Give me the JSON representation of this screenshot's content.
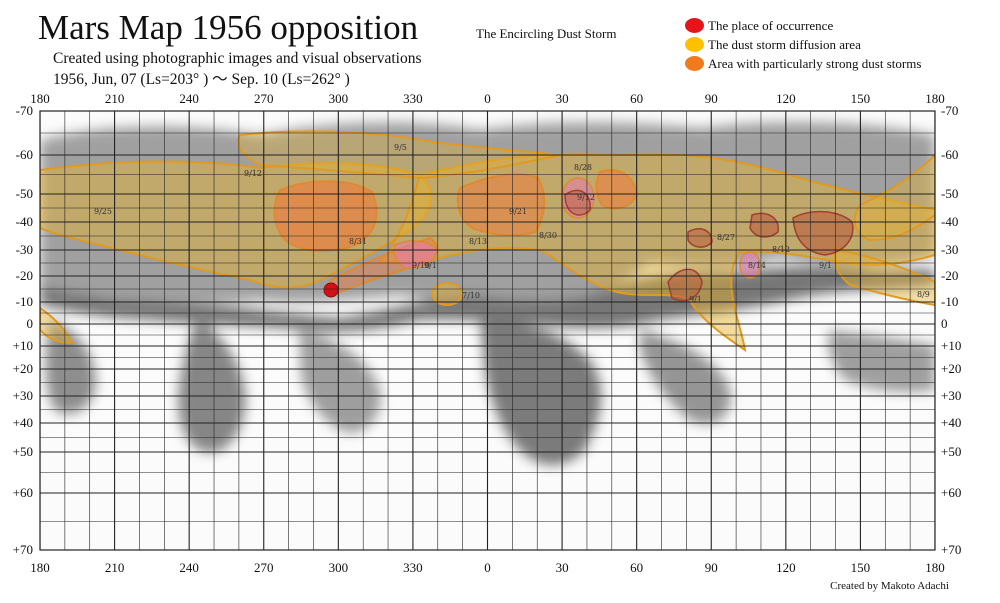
{
  "header": {
    "title": "Mars Map 1956 opposition",
    "subtitle": "The Encircling Dust Storm",
    "line1": "Created using photographic images and visual observations",
    "line2": "1956, Jun, 07 (Ls=203° )  ～   Sep. 10 (Ls=262° )"
  },
  "legend": [
    {
      "label": "The place of occurrence",
      "color": "#e4141a"
    },
    {
      "label": "The dust storm diffusion area",
      "color": "#ffc000"
    },
    {
      "label": "Area with particularly strong dust storms",
      "color": "#f07a1c"
    }
  ],
  "credit": "Created by Makoto Adachi",
  "axes": {
    "longitude_labels": [
      "180",
      "210",
      "240",
      "270",
      "300",
      "330",
      "0",
      "30",
      "60",
      "90",
      "120",
      "150",
      "180"
    ],
    "latitude_labels": [
      "-70",
      "-60",
      "-50",
      "-40",
      "-30",
      "-20",
      "-10",
      "0",
      "+10",
      "+20",
      "+30",
      "+40",
      "+50",
      "+60",
      "+70"
    ]
  },
  "date_annotations": [
    "9/5",
    "9/12",
    "9/25",
    "8/28",
    "9/12",
    "9/21",
    "8/30",
    "8/13",
    "8/31",
    "9/1",
    "7/10",
    "8/27",
    "8/14",
    "8/12",
    "9/1",
    "9/1",
    "8/9",
    "9/10"
  ],
  "colors": {
    "dark_albedo": "#3a3a3a",
    "diffusion": "#e8b22a",
    "diffusion_outline": "#e09a20",
    "strong": "#f07a3a",
    "occurrence": "#d41016",
    "pink": "#e87ab0",
    "grid": "#222222"
  }
}
